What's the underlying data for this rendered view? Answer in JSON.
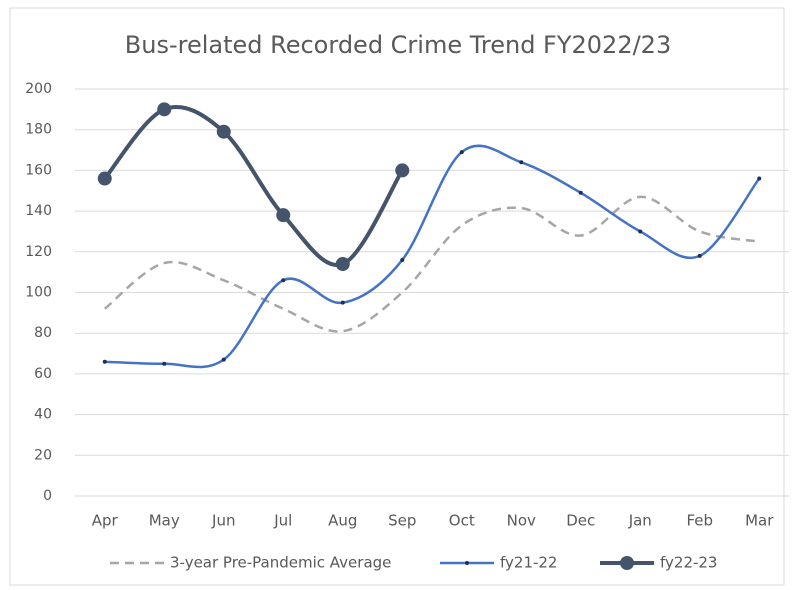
{
  "chart_data": {
    "type": "line",
    "title": "Bus-related Recorded Crime Trend FY2022/23",
    "categories": [
      "Apr",
      "May",
      "Jun",
      "Jul",
      "Aug",
      "Sep",
      "Oct",
      "Nov",
      "Dec",
      "Jan",
      "Feb",
      "Mar"
    ],
    "series": [
      {
        "name": "3-year Pre-Pandemic Average",
        "color": "#a6a6a6",
        "style": "dashed",
        "values": [
          92,
          114.5,
          106,
          92,
          81,
          100,
          133,
          141.5,
          128,
          147,
          130,
          125
        ]
      },
      {
        "name": "fy21-22",
        "color": "#4472c4",
        "style": "solid",
        "values": [
          66,
          65,
          67,
          106,
          95,
          116,
          169,
          164,
          149,
          130,
          118,
          156
        ]
      },
      {
        "name": "fy22-23",
        "color": "#44546a",
        "style": "solid",
        "values": [
          156,
          190,
          179,
          138,
          114,
          160,
          null,
          null,
          null,
          null,
          null,
          null
        ]
      }
    ],
    "ylim": [
      0,
      200
    ],
    "yticks": [
      0,
      20,
      40,
      60,
      80,
      100,
      120,
      140,
      160,
      180,
      200
    ],
    "grid": true,
    "smooth": true,
    "legend": "bottom"
  }
}
